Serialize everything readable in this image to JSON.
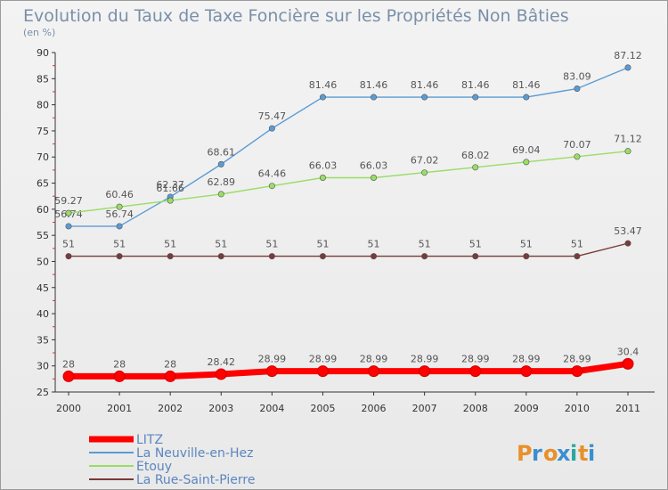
{
  "chart_data": {
    "type": "line",
    "title": "Evolution du Taux de Taxe Foncière sur les Propriétés Non Bâties",
    "subtitle": "(en %)",
    "x": [
      "2000",
      "2001",
      "2002",
      "2003",
      "2004",
      "2005",
      "2006",
      "2007",
      "2008",
      "2009",
      "2010",
      "2011"
    ],
    "ylim": [
      25,
      90
    ],
    "yticks": [
      25,
      30,
      35,
      40,
      45,
      50,
      55,
      60,
      65,
      70,
      75,
      80,
      85,
      90
    ],
    "grid": false,
    "legend_position": "bottom-left",
    "series": [
      {
        "name": "LITZ",
        "color": "#ff0000",
        "values": [
          28,
          28,
          28,
          28.42,
          28.99,
          28.99,
          28.99,
          28.99,
          28.99,
          28.99,
          28.99,
          30.4
        ],
        "labels": [
          "28",
          "28",
          "28",
          "28.42",
          "28.99",
          "28.99",
          "28.99",
          "28.99",
          "28.99",
          "28.99",
          "28.99",
          "30.4"
        ]
      },
      {
        "name": "La Neuville-en-Hez",
        "color": "#5b9bd5",
        "values": [
          56.74,
          56.74,
          62.37,
          68.61,
          75.47,
          81.46,
          81.46,
          81.46,
          81.46,
          81.46,
          83.09,
          87.12
        ],
        "labels": [
          "56.74",
          "56.74",
          "62.37",
          "68.61",
          "75.47",
          "81.46",
          "81.46",
          "81.46",
          "81.46",
          "81.46",
          "83.09",
          "87.12"
        ]
      },
      {
        "name": "Etouy",
        "color": "#99dd66",
        "values": [
          59.27,
          60.46,
          61.66,
          62.89,
          64.46,
          66.03,
          66.03,
          67.02,
          68.02,
          69.04,
          70.07,
          71.12
        ],
        "labels": [
          "59.27",
          "60.46",
          "61.66",
          "62.89",
          "64.46",
          "66.03",
          "66.03",
          "67.02",
          "68.02",
          "69.04",
          "70.07",
          "71.12"
        ]
      },
      {
        "name": "La Rue-Saint-Pierre",
        "color": "#7a3a3a",
        "values": [
          51,
          51,
          51,
          51,
          51,
          51,
          51,
          51,
          51,
          51,
          51,
          53.47
        ],
        "labels": [
          "51",
          "51",
          "51",
          "51",
          "51",
          "51",
          "51",
          "51",
          "51",
          "51",
          "51",
          "53.47"
        ]
      }
    ]
  },
  "logo": {
    "text": "Proxiti",
    "colors": [
      "#e8902a",
      "#3a8fd0",
      "#e8902a",
      "#3a8fd0",
      "#2aa8a0",
      "#e8902a",
      "#3a8fd0"
    ]
  }
}
